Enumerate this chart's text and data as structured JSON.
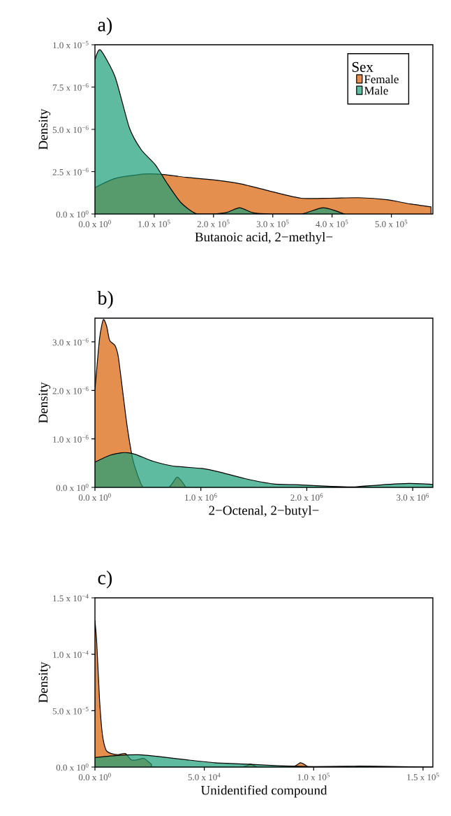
{
  "chart_data": [
    {
      "type": "area",
      "title": "a)",
      "xlabel": "Butanoic acid, 2−methyl−",
      "ylabel": "Density",
      "legend_title": "Sex",
      "legend": "top right",
      "xlim": [
        0,
        570000
      ],
      "ylim": [
        0,
        1e-05
      ],
      "xticks": [
        {
          "value": 0,
          "label": "0.0 x 10$^{0}$"
        },
        {
          "value": 100000,
          "label": "1.0 x 10$^{5}$"
        },
        {
          "value": 200000,
          "label": "2.0 x 10$^{5}$"
        },
        {
          "value": 300000,
          "label": "3.0 x 10$^{5}$"
        },
        {
          "value": 400000,
          "label": "4.0 x 10$^{5}$"
        },
        {
          "value": 500000,
          "label": "5.0 x 10$^{5}$"
        }
      ],
      "yticks": [
        {
          "value": 0,
          "label": "0.0 x 10$^{0}$"
        },
        {
          "value": 2.5e-06,
          "label": "2.5 x 10$^{−6}$"
        },
        {
          "value": 5e-06,
          "label": "5.0 x 10$^{−6}$"
        },
        {
          "value": 7.5e-06,
          "label": "7.5 x 10$^{−6}$"
        },
        {
          "value": 1e-05,
          "label": "1.0 x 10$^{−5}$"
        }
      ],
      "series": [
        {
          "name": "Female",
          "color": "#d95f02",
          "x": [
            0,
            34000,
            83000,
            116000,
            155000,
            199000,
            247000,
            295000,
            348000,
            397000,
            445000,
            493000,
            532000,
            567000
          ],
          "values": [
            1.55e-06,
            2.1e-06,
            2.36e-06,
            2.33e-06,
            2.16e-06,
            2.02e-06,
            1.77e-06,
            1.35e-06,
            9.3e-07,
            9.3e-07,
            9.6e-07,
            8.4e-07,
            5.9e-07,
            4.2e-07
          ]
        },
        {
          "name": "Male",
          "color": "#1b9e77",
          "x": [
            0,
            9000,
            34000,
            58000,
            78000,
            102000,
            121000,
            145000,
            170000,
            199000,
            223000,
            244000,
            266000,
            295000,
            348000,
            385000,
            421000
          ],
          "values": [
            9.1e-06,
            9.7e-06,
            8.1e-06,
            5.1e-06,
            3.8e-06,
            2.9e-06,
            1.85e-06,
            6.7e-07,
            3e-08,
            0,
            1e-07,
            3.7e-07,
            8e-08,
            0,
            0,
            3.7e-07,
            0
          ]
        }
      ]
    },
    {
      "type": "area",
      "title": "b)",
      "xlabel": "2−Octenal, 2−butyl−",
      "ylabel": "Density",
      "xlim": [
        0,
        3190000
      ],
      "ylim": [
        0,
        3.49e-06
      ],
      "xticks": [
        {
          "value": 0,
          "label": "0.0 x 10$^{0}$"
        },
        {
          "value": 1000000,
          "label": "1.0 x 10$^{6}$"
        },
        {
          "value": 2000000,
          "label": "2.0 x 10$^{6}$"
        },
        {
          "value": 3000000,
          "label": "3.0 x 10$^{6}$"
        }
      ],
      "yticks": [
        {
          "value": 0,
          "label": "0.0 x 10$^{0}$"
        },
        {
          "value": 1e-06,
          "label": "1.0 x 10$^{−6}$"
        },
        {
          "value": 2e-06,
          "label": "2.0 x 10$^{−6}$"
        },
        {
          "value": 3e-06,
          "label": "3.0 x 10$^{−6}$"
        }
      ],
      "series": [
        {
          "color": "#d95f02",
          "x": [
            0,
            43000,
            79000,
            111000,
            139000,
            188000,
            220000,
            261000,
            302000,
            356000,
            405000,
            451000,
            519000,
            696000,
            777000,
            859000
          ],
          "values": [
            2e-06,
            3.06e-06,
            3.46e-06,
            3.32e-06,
            3.03e-06,
            2.93e-06,
            2.7e-06,
            2e-06,
            1.29e-06,
            5.9e-07,
            2.4e-07,
            1e-08,
            0,
            0,
            2.1e-07,
            0
          ]
        },
        {
          "color": "#1b9e77",
          "x": [
            0,
            139000,
            274000,
            383000,
            546000,
            736000,
            1008000,
            1171000,
            1416000,
            1688000,
            1959000,
            2231000,
            2448000,
            2693000,
            2965000,
            3190000
          ],
          "values": [
            5.2e-07,
            6.6e-07,
            7.2e-07,
            6.8e-07,
            5.4e-07,
            4.4e-07,
            3.9e-07,
            3.2e-07,
            1.8e-07,
            7e-08,
            5e-08,
            2e-08,
            1e-08,
            5e-08,
            8e-08,
            6e-08
          ]
        }
      ]
    },
    {
      "type": "area",
      "title": "c)",
      "xlabel": "Unidentified compound",
      "ylabel": "Density",
      "xlim": [
        0,
        154500
      ],
      "ylim": [
        0,
        0.00015
      ],
      "xticks": [
        {
          "value": 0,
          "label": "0.0 x 10$^{0}$"
        },
        {
          "value": 50000,
          "label": "5.0 x 10$^{4}$"
        },
        {
          "value": 100000,
          "label": "1.0 x 10$^{5}$"
        },
        {
          "value": 150000,
          "label": "1.5 x 10$^{5}$"
        }
      ],
      "yticks": [
        {
          "value": 0,
          "label": "0.0 x 10$^{0}$"
        },
        {
          "value": 5e-05,
          "label": "5.0 x 10$^{−5}$"
        },
        {
          "value": 0.0001,
          "label": "1.0 x 10$^{−4}$"
        },
        {
          "value": 0.00015,
          "label": "1.5 x 10$^{−4}$"
        }
      ],
      "series": [
        {
          "color": "#d95f02",
          "x": [
            0,
            800,
            2100,
            3400,
            5100,
            7400,
            10700,
            13900,
            16600,
            19200,
            22500,
            25800,
            28400,
            66000,
            71000,
            75000,
            90000,
            94000,
            97500
          ],
          "values": [
            0.00013,
            0.000111,
            6e-05,
            2.9e-05,
            1.5e-05,
            1.2e-05,
            1.1e-05,
            1.2e-05,
            6.4e-06,
            6.4e-06,
            7.6e-06,
            2.5e-06,
            0,
            0,
            2.5e-06,
            0,
            0,
            3.8e-06,
            0
          ]
        },
        {
          "color": "#1b9e77",
          "x": [
            0,
            9300,
            19900,
            29000,
            42000,
            55000,
            70000,
            82000,
            95000,
            108000,
            121000,
            134000,
            154500
          ],
          "values": [
            8.4e-06,
            1.02e-05,
            1.09e-05,
            9.4e-06,
            6.4e-06,
            3.8e-06,
            2.5e-06,
            1.3e-06,
            5e-07,
            5e-07,
            8e-07,
            5e-07,
            0
          ]
        }
      ]
    }
  ]
}
